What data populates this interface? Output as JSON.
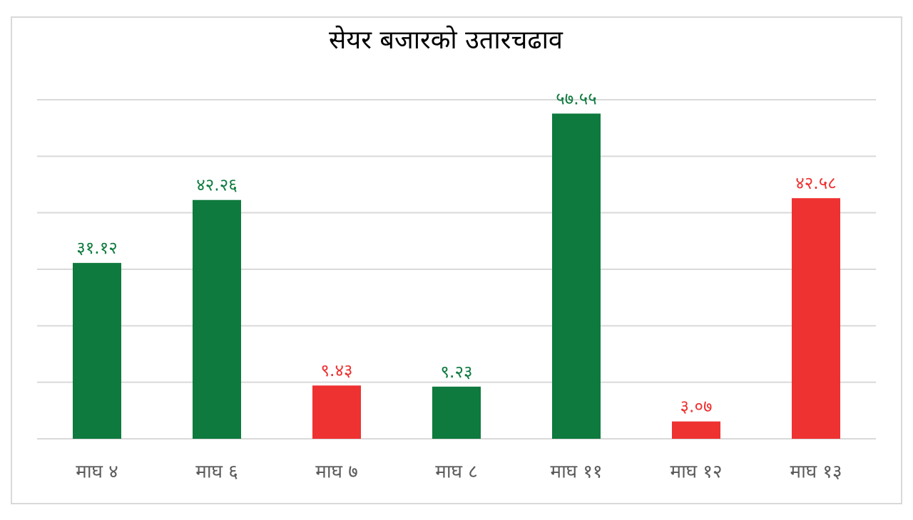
{
  "chart_data": {
    "type": "bar",
    "title": "सेयर बजारको उतारचढाव",
    "categories": [
      "माघ ४",
      "माघ ६",
      "माघ ७",
      "माघ ८",
      "माघ ११",
      "माघ १२",
      "माघ १३"
    ],
    "values": [
      31.12,
      42.26,
      9.43,
      9.23,
      57.55,
      3.07,
      42.58
    ],
    "value_labels": [
      "३१.१२",
      "४२.२६",
      "९.४३",
      "९.२३",
      "५७.५५",
      "३.०७",
      "४२.५८"
    ],
    "colors": [
      "#0e7a3e",
      "#0e7a3e",
      "#ee3231",
      "#0e7a3e",
      "#0e7a3e",
      "#ee3231",
      "#ee3231"
    ],
    "ylim": [
      0,
      60
    ],
    "yticks": [
      0,
      10,
      20,
      30,
      40,
      50,
      60
    ],
    "grid": true
  }
}
